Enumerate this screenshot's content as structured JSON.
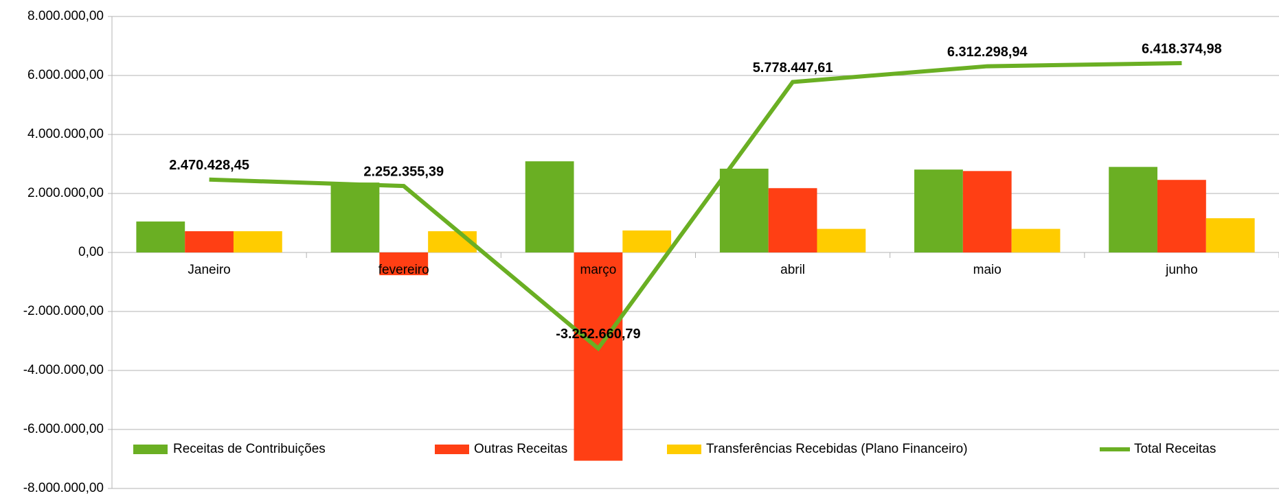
{
  "chart_data": {
    "type": "bar+line",
    "categories": [
      "Janeiro",
      "fevereiro",
      "março",
      "abril",
      "maio",
      "junho"
    ],
    "series": [
      {
        "name": "Receitas de Contribuições",
        "type": "bar",
        "color": "#6aaf23",
        "values": [
          1050000,
          2370000,
          3090000,
          2840000,
          2810000,
          2900000
        ]
      },
      {
        "name": "Outras Receitas",
        "type": "bar",
        "color": "#ff3f14",
        "values": [
          720000,
          -770000,
          -7060000,
          2180000,
          2760000,
          2460000
        ]
      },
      {
        "name": "Transferências Recebidas (Plano Financeiro)",
        "type": "bar",
        "color": "#ffcc00",
        "values": [
          720000,
          720000,
          745000,
          800000,
          800000,
          1160000
        ]
      },
      {
        "name": "Total Receitas",
        "type": "line",
        "color": "#6aaf23",
        "values": [
          2470428.45,
          2252355.39,
          -3252660.79,
          5778447.61,
          6312298.94,
          6418374.98
        ],
        "value_labels": [
          "2.470.428,45",
          "2.252.355,39",
          "-3.252.660,79",
          "5.778.447,61",
          "6.312.298,94",
          "6.418.374,98"
        ]
      }
    ],
    "ylim": [
      -8000000,
      8000000
    ],
    "yticks": [
      {
        "value": 8000000,
        "label": "8.000.000,00"
      },
      {
        "value": 6000000,
        "label": "6.000.000,00"
      },
      {
        "value": 4000000,
        "label": "4.000.000,00"
      },
      {
        "value": 2000000,
        "label": "2.000.000,00"
      },
      {
        "value": 0,
        "label": "0,00"
      },
      {
        "value": -2000000,
        "label": "-2.000.000,00"
      },
      {
        "value": -4000000,
        "label": "-4.000.000,00"
      },
      {
        "value": -6000000,
        "label": "-6.000.000,00"
      },
      {
        "value": -8000000,
        "label": "-8.000.000,00"
      }
    ],
    "grid": true,
    "legend": "bottom"
  }
}
